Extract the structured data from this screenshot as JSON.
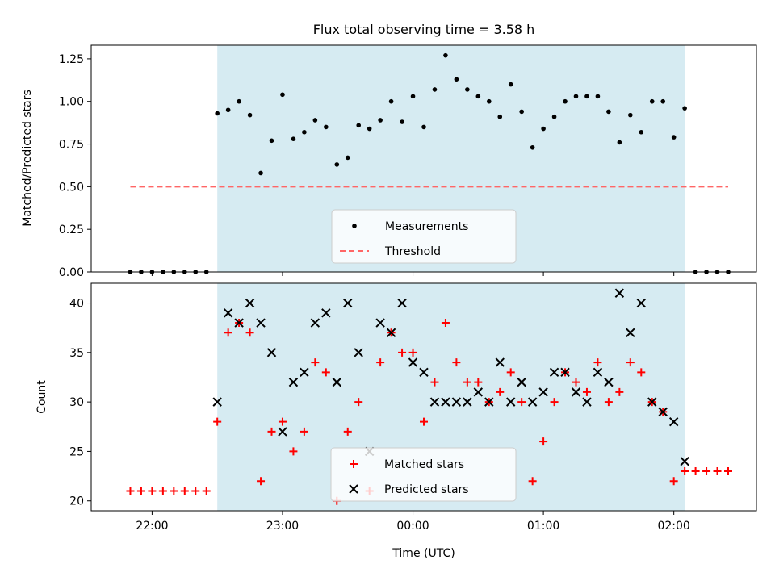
{
  "chart_data": [
    {
      "type": "scatter",
      "title": "Flux total observing time = 3.58 h",
      "xlabel": "",
      "ylabel": "Matched/Predicted stars",
      "xlim": [
        "21:32",
        "02:38"
      ],
      "ylim": [
        0.0,
        1.33
      ],
      "yticks": [
        0.0,
        0.25,
        0.5,
        0.75,
        1.0,
        1.25
      ],
      "ytick_labels": [
        "0.00",
        "0.25",
        "0.50",
        "0.75",
        "1.00",
        "1.25"
      ],
      "shaded_region": {
        "start": "22:30",
        "end": "02:05",
        "color": "#add8e6"
      },
      "threshold": {
        "value": 0.5,
        "start": "21:50",
        "end": "02:25",
        "color": "#ff6666",
        "style": "dashed"
      },
      "legend": {
        "location": "lower center",
        "entries": [
          "Measurements",
          "Threshold"
        ]
      },
      "series": [
        {
          "name": "Measurements",
          "marker": "dot",
          "color": "#000000",
          "points": [
            [
              "21:50",
              0.0
            ],
            [
              "21:55",
              0.0
            ],
            [
              "22:00",
              0.0
            ],
            [
              "22:05",
              0.0
            ],
            [
              "22:10",
              0.0
            ],
            [
              "22:15",
              0.0
            ],
            [
              "22:20",
              0.0
            ],
            [
              "22:25",
              0.0
            ],
            [
              "22:30",
              0.93
            ],
            [
              "22:35",
              0.95
            ],
            [
              "22:40",
              1.0
            ],
            [
              "22:45",
              0.92
            ],
            [
              "22:50",
              0.58
            ],
            [
              "22:55",
              0.77
            ],
            [
              "23:00",
              1.04
            ],
            [
              "23:05",
              0.78
            ],
            [
              "23:10",
              0.82
            ],
            [
              "23:15",
              0.89
            ],
            [
              "23:20",
              0.85
            ],
            [
              "23:25",
              0.63
            ],
            [
              "23:30",
              0.67
            ],
            [
              "23:35",
              0.86
            ],
            [
              "23:40",
              0.84
            ],
            [
              "23:45",
              0.89
            ],
            [
              "23:50",
              1.0
            ],
            [
              "23:55",
              0.88
            ],
            [
              "00:00",
              1.03
            ],
            [
              "00:05",
              0.85
            ],
            [
              "00:10",
              1.07
            ],
            [
              "00:15",
              1.27
            ],
            [
              "00:20",
              1.13
            ],
            [
              "00:25",
              1.07
            ],
            [
              "00:30",
              1.03
            ],
            [
              "00:35",
              1.0
            ],
            [
              "00:40",
              0.91
            ],
            [
              "00:45",
              1.1
            ],
            [
              "00:50",
              0.94
            ],
            [
              "00:55",
              0.73
            ],
            [
              "01:00",
              0.84
            ],
            [
              "01:05",
              0.91
            ],
            [
              "01:10",
              1.0
            ],
            [
              "01:15",
              1.03
            ],
            [
              "01:20",
              1.03
            ],
            [
              "01:25",
              1.03
            ],
            [
              "01:30",
              0.94
            ],
            [
              "01:35",
              0.76
            ],
            [
              "01:40",
              0.92
            ],
            [
              "01:45",
              0.82
            ],
            [
              "01:50",
              1.0
            ],
            [
              "01:55",
              1.0
            ],
            [
              "02:00",
              0.79
            ],
            [
              "02:05",
              0.96
            ],
            [
              "02:10",
              0.0
            ],
            [
              "02:15",
              0.0
            ],
            [
              "02:20",
              0.0
            ],
            [
              "02:25",
              0.0
            ]
          ]
        }
      ]
    },
    {
      "type": "scatter",
      "title": "",
      "xlabel": "Time (UTC)",
      "ylabel": "Count",
      "xlim": [
        "21:32",
        "02:38"
      ],
      "ylim": [
        19,
        42
      ],
      "yticks": [
        20,
        25,
        30,
        35,
        40
      ],
      "xticks": [
        "22:00",
        "23:00",
        "00:00",
        "01:00",
        "02:00"
      ],
      "shaded_region": {
        "start": "22:30",
        "end": "02:05",
        "color": "#add8e6"
      },
      "legend": {
        "location": "lower center",
        "entries": [
          "Matched stars",
          "Predicted stars"
        ]
      },
      "series": [
        {
          "name": "Matched stars",
          "marker": "plus",
          "color": "#ff0000",
          "points": [
            [
              "21:50",
              21
            ],
            [
              "21:55",
              21
            ],
            [
              "22:00",
              21
            ],
            [
              "22:05",
              21
            ],
            [
              "22:10",
              21
            ],
            [
              "22:15",
              21
            ],
            [
              "22:20",
              21
            ],
            [
              "22:25",
              21
            ],
            [
              "22:30",
              28
            ],
            [
              "22:35",
              37
            ],
            [
              "22:40",
              38
            ],
            [
              "22:45",
              37
            ],
            [
              "22:50",
              22
            ],
            [
              "22:55",
              27
            ],
            [
              "23:00",
              28
            ],
            [
              "23:05",
              25
            ],
            [
              "23:10",
              27
            ],
            [
              "23:15",
              34
            ],
            [
              "23:20",
              33
            ],
            [
              "23:25",
              20
            ],
            [
              "23:30",
              27
            ],
            [
              "23:35",
              30
            ],
            [
              "23:40",
              21
            ],
            [
              "23:45",
              34
            ],
            [
              "23:50",
              37
            ],
            [
              "23:55",
              35
            ],
            [
              "00:00",
              35
            ],
            [
              "00:05",
              28
            ],
            [
              "00:10",
              32
            ],
            [
              "00:15",
              38
            ],
            [
              "00:20",
              34
            ],
            [
              "00:25",
              32
            ],
            [
              "00:30",
              32
            ],
            [
              "00:35",
              30
            ],
            [
              "00:40",
              31
            ],
            [
              "00:45",
              33
            ],
            [
              "00:50",
              30
            ],
            [
              "00:55",
              22
            ],
            [
              "01:00",
              26
            ],
            [
              "01:05",
              30
            ],
            [
              "01:10",
              33
            ],
            [
              "01:15",
              32
            ],
            [
              "01:20",
              31
            ],
            [
              "01:25",
              34
            ],
            [
              "01:30",
              30
            ],
            [
              "01:35",
              31
            ],
            [
              "01:40",
              34
            ],
            [
              "01:45",
              33
            ],
            [
              "01:50",
              30
            ],
            [
              "01:55",
              29
            ],
            [
              "02:00",
              22
            ],
            [
              "02:05",
              23
            ],
            [
              "02:10",
              23
            ],
            [
              "02:15",
              23
            ],
            [
              "02:20",
              23
            ],
            [
              "02:25",
              23
            ]
          ]
        },
        {
          "name": "Predicted stars",
          "marker": "x",
          "color": "#000000",
          "points": [
            [
              "22:30",
              30
            ],
            [
              "22:35",
              39
            ],
            [
              "22:40",
              38
            ],
            [
              "22:45",
              40
            ],
            [
              "22:50",
              38
            ],
            [
              "22:55",
              35
            ],
            [
              "23:00",
              27
            ],
            [
              "23:05",
              32
            ],
            [
              "23:10",
              33
            ],
            [
              "23:15",
              38
            ],
            [
              "23:20",
              39
            ],
            [
              "23:25",
              32
            ],
            [
              "23:30",
              40
            ],
            [
              "23:35",
              35
            ],
            [
              "23:40",
              25
            ],
            [
              "23:45",
              38
            ],
            [
              "23:50",
              37
            ],
            [
              "23:55",
              40
            ],
            [
              "00:00",
              34
            ],
            [
              "00:05",
              33
            ],
            [
              "00:10",
              30
            ],
            [
              "00:15",
              30
            ],
            [
              "00:20",
              30
            ],
            [
              "00:25",
              30
            ],
            [
              "00:30",
              31
            ],
            [
              "00:35",
              30
            ],
            [
              "00:40",
              34
            ],
            [
              "00:45",
              30
            ],
            [
              "00:50",
              32
            ],
            [
              "00:55",
              30
            ],
            [
              "01:00",
              31
            ],
            [
              "01:05",
              33
            ],
            [
              "01:10",
              33
            ],
            [
              "01:15",
              31
            ],
            [
              "01:20",
              30
            ],
            [
              "01:25",
              33
            ],
            [
              "01:30",
              32
            ],
            [
              "01:35",
              41
            ],
            [
              "01:40",
              37
            ],
            [
              "01:45",
              40
            ],
            [
              "01:50",
              30
            ],
            [
              "01:55",
              29
            ],
            [
              "02:00",
              28
            ],
            [
              "02:05",
              24
            ]
          ]
        }
      ]
    }
  ]
}
